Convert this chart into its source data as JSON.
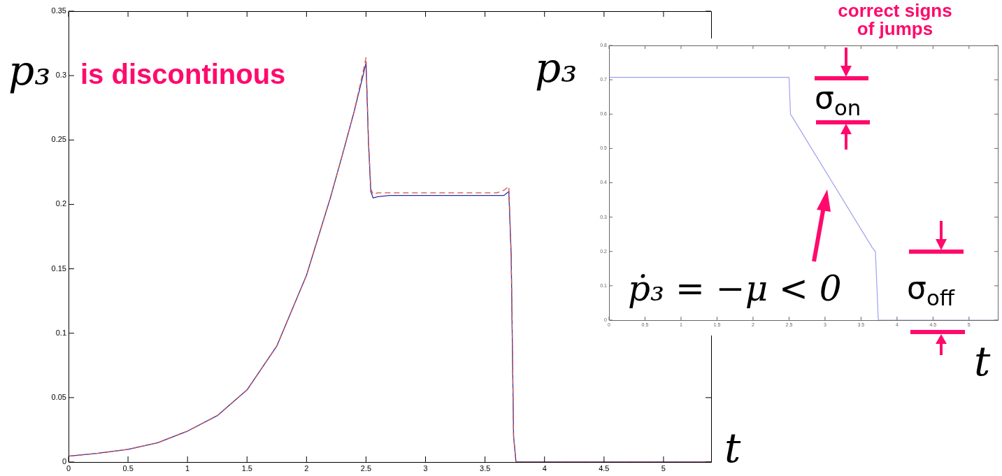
{
  "chart_data": [
    {
      "type": "line",
      "xlabel": "t",
      "ylabel": "p₃",
      "annotations": [
        "is discontinous"
      ],
      "xlim": [
        0,
        5.4
      ],
      "ylim": [
        0,
        0.35
      ],
      "xticks": [
        0,
        0.5,
        1,
        1.5,
        2,
        2.5,
        3,
        3.5,
        4,
        4.5,
        5
      ],
      "yticks": [
        0,
        0.05,
        0.1,
        0.15,
        0.2,
        0.25,
        0.3,
        0.35
      ],
      "grid": false,
      "legend": false,
      "marker": "none",
      "series": [
        {
          "color": "#d05050",
          "line_style": "dashed",
          "x": [
            0,
            0.25,
            0.5,
            0.75,
            1,
            1.25,
            1.5,
            1.75,
            2,
            2.1,
            2.2,
            2.3,
            2.4,
            2.48,
            2.5,
            2.52,
            2.54,
            2.56,
            2.6,
            2.7,
            3.6,
            3.66,
            3.7,
            3.72,
            3.74,
            3.76,
            5.4
          ],
          "values": [
            0.0045,
            0.0068,
            0.0098,
            0.015,
            0.024,
            0.036,
            0.056,
            0.09,
            0.145,
            0.175,
            0.205,
            0.238,
            0.272,
            0.305,
            0.314,
            0.25,
            0.212,
            0.208,
            0.209,
            0.209,
            0.209,
            0.211,
            0.214,
            0.16,
            0.02,
            0,
            0
          ]
        },
        {
          "color": "#30309a",
          "line_style": "solid",
          "x": [
            0,
            0.25,
            0.5,
            0.75,
            1,
            1.25,
            1.5,
            1.75,
            2,
            2.1,
            2.2,
            2.3,
            2.4,
            2.48,
            2.5,
            2.52,
            2.54,
            2.56,
            2.6,
            2.7,
            3.6,
            3.66,
            3.7,
            3.72,
            3.74,
            3.76,
            5.4
          ],
          "values": [
            0.0045,
            0.0068,
            0.0098,
            0.015,
            0.024,
            0.036,
            0.056,
            0.09,
            0.145,
            0.175,
            0.205,
            0.238,
            0.272,
            0.302,
            0.31,
            0.25,
            0.21,
            0.205,
            0.206,
            0.207,
            0.207,
            0.207,
            0.21,
            0.16,
            0.02,
            0,
            0
          ]
        }
      ]
    },
    {
      "type": "line",
      "xlabel": "t",
      "ylabel": "p₃",
      "annotations": [
        "correct signs of jumps",
        "σ$_{on}$",
        "σ$_{off}$",
        "ṗ₃ = −μ < 0"
      ],
      "xlim": [
        0,
        5.4
      ],
      "ylim": [
        0,
        0.8
      ],
      "xticks": [
        0,
        0.5,
        1,
        1.5,
        2,
        2.5,
        3,
        3.5,
        4,
        4.5,
        5
      ],
      "yticks": [
        0,
        0.1,
        0.2,
        0.3,
        0.4,
        0.5,
        0.6,
        0.7,
        0.8
      ],
      "grid": false,
      "legend": false,
      "marker": "none",
      "series": [
        {
          "color": "#a0a0f0",
          "line_style": "solid",
          "x": [
            0,
            2.5,
            2.52,
            2.55,
            3.66,
            3.7,
            3.72,
            3.74,
            5.4
          ],
          "values": [
            0.707,
            0.707,
            0.6,
            0.59,
            0.21,
            0.2,
            0.1,
            0,
            0
          ]
        }
      ]
    }
  ]
}
